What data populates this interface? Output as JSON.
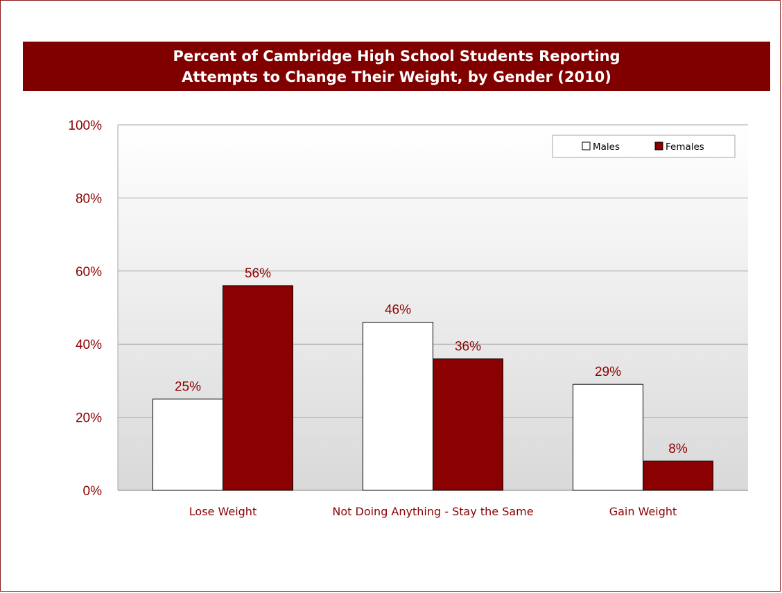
{
  "chart_data": {
    "type": "bar",
    "title": "Percent of Cambridge High School Students Reporting Attempts to Change Their Weight, by Gender (2010)",
    "title_lines": [
      "Percent of Cambridge High School Students Reporting",
      "Attempts to Change Their Weight, by Gender (2010)"
    ],
    "categories": [
      "Lose Weight",
      "Not Doing Anything - Stay the Same",
      "Gain Weight"
    ],
    "series": [
      {
        "name": "Males",
        "values": [
          25,
          46,
          29
        ],
        "labels": [
          "25%",
          "46%",
          "29%"
        ],
        "color": "#ffffff"
      },
      {
        "name": "Females",
        "values": [
          56,
          36,
          8
        ],
        "labels": [
          "56%",
          "36%",
          "8%"
        ],
        "color": "#8b0000"
      }
    ],
    "yticks": [
      0,
      20,
      40,
      60,
      80,
      100
    ],
    "ytick_labels": [
      "0%",
      "20%",
      "40%",
      "60%",
      "80%",
      "100%"
    ],
    "ylim": [
      0,
      100
    ],
    "xlabel": "",
    "ylabel": "",
    "grid": true,
    "legend": "top-right",
    "colors": {
      "title_bg": "#800000",
      "title_text": "#ffffff",
      "accent": "#8b0000",
      "frame": "#8b1a1a"
    }
  }
}
